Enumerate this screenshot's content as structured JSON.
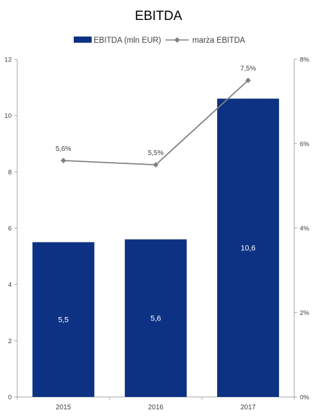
{
  "chart_data": {
    "type": "bar",
    "title": "EBITDA",
    "categories": [
      "2015",
      "2016",
      "2017"
    ],
    "series": [
      {
        "name": "EBITDA (mln EUR)",
        "type": "bar",
        "axis": "left",
        "values": [
          5.5,
          5.6,
          10.6
        ],
        "labels": [
          "5,5",
          "5,6",
          "10,6"
        ],
        "color": "#0d3283"
      },
      {
        "name": "marża EBITDA",
        "type": "line",
        "axis": "right",
        "values": [
          5.6,
          5.5,
          7.5
        ],
        "labels": [
          "5,6%",
          "5,5%",
          "7,5%"
        ],
        "color": "#808080"
      }
    ],
    "y_left": {
      "min": 0,
      "max": 12,
      "ticks": [
        "0",
        "2",
        "4",
        "6",
        "8",
        "10",
        "12"
      ]
    },
    "y_right": {
      "min": 0,
      "max": 8,
      "ticks": [
        "0%",
        "2%",
        "4%",
        "6%",
        "8%"
      ]
    },
    "grid": false,
    "legend_position": "top"
  }
}
